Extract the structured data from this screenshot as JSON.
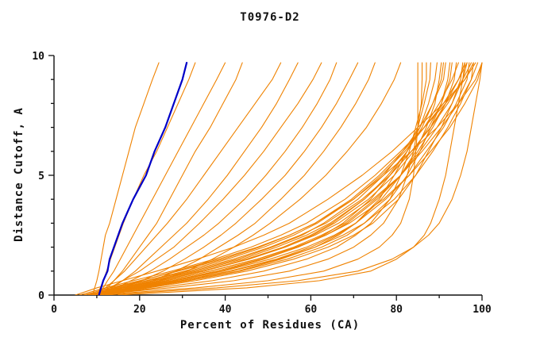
{
  "chart_data": {
    "type": "line",
    "title": "T0976-D2",
    "xlabel": "Percent of Residues (CA)",
    "ylabel": "Distance Cutoff, A",
    "xlim": [
      0,
      100
    ],
    "ylim": [
      0,
      10
    ],
    "xticks": [
      0,
      20,
      40,
      60,
      80,
      100
    ],
    "x_minor_step": 10,
    "yticks": [
      0,
      5,
      10
    ],
    "y_minor_step": 1,
    "grid": false,
    "legend_position": "none",
    "line_color": "#ef8200",
    "highlight_color": "#0000c8",
    "axis_color": "#111111",
    "y_samples": [
      0,
      0.3,
      0.6,
      1,
      1.5,
      2,
      2.5,
      3,
      4,
      5,
      6,
      7,
      8,
      9,
      9.7
    ],
    "series": [
      {
        "name": "model",
        "color": "#ef8200",
        "width": 1.1,
        "x": [
          9,
          9.5,
          10,
          10.5,
          11,
          11.5,
          12,
          13,
          14.5,
          16,
          17.5,
          19,
          21,
          23,
          24.5
        ]
      },
      {
        "name": "model",
        "color": "#ef8200",
        "width": 1.1,
        "x": [
          10,
          10.8,
          11.5,
          12.3,
          13.2,
          14.2,
          15.2,
          16.2,
          18.5,
          21,
          24,
          26.5,
          29,
          31.5,
          33
        ]
      },
      {
        "name": "model",
        "color": "#ef8200",
        "width": 1.1,
        "x": [
          10.5,
          11.5,
          12.5,
          14,
          15.5,
          17,
          18.5,
          20,
          23,
          26,
          29,
          32,
          35,
          38,
          40
        ]
      },
      {
        "name": "model",
        "color": "#ef8200",
        "width": 1.1,
        "x": [
          11,
          12.5,
          14,
          16,
          18,
          20,
          22,
          24,
          27,
          30,
          33,
          36.5,
          39.5,
          42.5,
          44
        ]
      },
      {
        "name": "model",
        "color": "#ef8200",
        "width": 1.1,
        "x": [
          10,
          12,
          14,
          16.5,
          19,
          21.5,
          24,
          26.5,
          31,
          35,
          39,
          43,
          47,
          51,
          53
        ]
      },
      {
        "name": "model",
        "color": "#ef8200",
        "width": 1.1,
        "x": [
          11,
          13.5,
          16,
          19,
          22,
          25,
          28,
          31,
          36,
          40.5,
          44.5,
          48.5,
          52,
          55,
          57
        ]
      },
      {
        "name": "model",
        "color": "#ef8200",
        "width": 1.1,
        "x": [
          10,
          13,
          16,
          20,
          24,
          28,
          31,
          34,
          39.5,
          44.5,
          49,
          53,
          57,
          60.5,
          62.5
        ]
      },
      {
        "name": "model",
        "color": "#ef8200",
        "width": 1.1,
        "x": [
          11,
          14.5,
          18,
          22.5,
          27,
          31,
          35,
          38.5,
          44.5,
          49.5,
          54,
          58,
          61.5,
          64.5,
          66
        ]
      },
      {
        "name": "model",
        "color": "#ef8200",
        "width": 1.1,
        "x": [
          12,
          16,
          20.5,
          25.5,
          30.5,
          35,
          39,
          42.5,
          48.5,
          54,
          58.5,
          62.5,
          66,
          69,
          71
        ]
      },
      {
        "name": "model",
        "color": "#ef8200",
        "width": 1.1,
        "x": [
          12.5,
          17.5,
          23,
          28.5,
          34,
          38.5,
          43,
          47,
          53,
          58.5,
          63,
          67,
          70.5,
          73.5,
          75
        ]
      },
      {
        "name": "model",
        "color": "#ef8200",
        "width": 1.1,
        "x": [
          13,
          18.5,
          24.5,
          31,
          37,
          42,
          46.5,
          50.5,
          57.5,
          63.5,
          68.5,
          73,
          76.5,
          79.5,
          81
        ]
      },
      {
        "name": "model",
        "color": "#ef8200",
        "width": 1.1,
        "x": [
          10,
          33,
          50,
          63,
          71,
          76,
          79,
          81,
          83,
          84,
          84.5,
          85,
          85,
          85,
          85
        ]
      },
      {
        "name": "model",
        "color": "#ef8200",
        "width": 1.1,
        "x": [
          9,
          27,
          42,
          55,
          64,
          70,
          74,
          77,
          80.5,
          82.5,
          84,
          85,
          85.8,
          86,
          86
        ]
      },
      {
        "name": "model",
        "color": "#ef8200",
        "width": 1.1,
        "x": [
          10,
          24,
          37,
          49,
          59,
          66,
          70.5,
          74,
          78.5,
          81,
          83,
          84.5,
          86,
          87,
          87
        ]
      },
      {
        "name": "model",
        "color": "#ef8200",
        "width": 1.1,
        "x": [
          8,
          20,
          31,
          43,
          53,
          61,
          66.5,
          70.5,
          76,
          79.5,
          82.5,
          85,
          86.5,
          87.8,
          88
        ]
      },
      {
        "name": "model",
        "color": "#ef8200",
        "width": 1.1,
        "x": [
          9,
          18,
          28,
          39,
          49,
          57,
          63,
          67.5,
          74,
          78.5,
          82.5,
          85.5,
          87.5,
          89,
          89.5
        ]
      },
      {
        "name": "model",
        "color": "#ef8200",
        "width": 1.1,
        "x": [
          10,
          19,
          29.5,
          41,
          52,
          60,
          66,
          70.5,
          76.5,
          81,
          84.5,
          87,
          89,
          90,
          90.5
        ]
      },
      {
        "name": "model",
        "color": "#ef8200",
        "width": 1.1,
        "x": [
          7,
          16,
          25,
          35,
          45,
          53.5,
          60,
          65,
          72.5,
          78,
          82.5,
          86,
          88.5,
          90.5,
          91
        ]
      },
      {
        "name": "model",
        "color": "#ef8200",
        "width": 1.1,
        "x": [
          8,
          15,
          23,
          32.5,
          43,
          51,
          58,
          63,
          71,
          77,
          81.5,
          85.5,
          88.5,
          91,
          91.5
        ]
      },
      {
        "name": "model",
        "color": "#ef8200",
        "width": 1.1,
        "x": [
          11,
          21,
          31.5,
          43.5,
          54.5,
          62.5,
          68.5,
          72.5,
          78.5,
          82.5,
          85.5,
          88,
          90.5,
          92,
          92.5
        ]
      },
      {
        "name": "model",
        "color": "#ef8200",
        "width": 1.1,
        "x": [
          9,
          16,
          25,
          35,
          45.5,
          54,
          60.5,
          65.5,
          73.5,
          79.5,
          84,
          87.5,
          90.5,
          92.5,
          93
        ]
      },
      {
        "name": "model",
        "color": "#ef8200",
        "width": 1.1,
        "x": [
          10,
          18,
          27.5,
          38,
          48.5,
          57,
          63.5,
          68.5,
          75.5,
          81,
          85,
          88.5,
          91.5,
          93.5,
          94
        ]
      },
      {
        "name": "model",
        "color": "#ef8200",
        "width": 1.1,
        "x": [
          8,
          14,
          21.5,
          30.5,
          40.5,
          49,
          56,
          61.5,
          70,
          76.5,
          82,
          86.5,
          90,
          93,
          94.5
        ]
      },
      {
        "name": "model",
        "color": "#ef8200",
        "width": 1.1,
        "x": [
          12,
          22,
          33,
          45,
          56,
          64,
          70,
          74.5,
          80.5,
          84.5,
          87.5,
          90.5,
          93,
          95,
          95.5
        ]
      },
      {
        "name": "model",
        "color": "#ef8200",
        "width": 1.1,
        "x": [
          9,
          15.5,
          23.5,
          33.5,
          44,
          52,
          59,
          64.5,
          72.5,
          78.5,
          83.5,
          88,
          91.5,
          94.5,
          96
        ]
      },
      {
        "name": "model",
        "color": "#ef8200",
        "width": 1.1,
        "x": [
          10,
          17,
          26,
          36.5,
          47.5,
          56,
          62.5,
          68,
          75,
          81,
          85.5,
          89.5,
          93,
          95.5,
          96.5
        ]
      },
      {
        "name": "model",
        "color": "#ef8200",
        "width": 1.1,
        "x": [
          7,
          13,
          20,
          29,
          39.5,
          48,
          55,
          61,
          69.5,
          76,
          81.5,
          86.5,
          91,
          94.5,
          96.5
        ]
      },
      {
        "name": "model",
        "color": "#ef8200",
        "width": 1.1,
        "x": [
          11,
          19,
          28.5,
          39.5,
          50.5,
          59,
          65.5,
          70.5,
          77.5,
          83,
          87,
          91,
          94,
          96.5,
          97
        ]
      },
      {
        "name": "model",
        "color": "#ef8200",
        "width": 1.1,
        "x": [
          8,
          14,
          22,
          31.5,
          42,
          50.5,
          57.5,
          63.5,
          72,
          78.5,
          83.5,
          88,
          92,
          95.5,
          97.5
        ]
      },
      {
        "name": "model",
        "color": "#ef8200",
        "width": 1.1,
        "x": [
          12,
          20,
          30,
          41.5,
          52.5,
          61,
          67.5,
          72.5,
          79.5,
          84.5,
          88.5,
          92,
          95,
          97.5,
          98
        ]
      },
      {
        "name": "model",
        "color": "#ef8200",
        "width": 1.1,
        "x": [
          6,
          12,
          18.5,
          27.5,
          37.5,
          46,
          53,
          59,
          68,
          75,
          81,
          86.5,
          91.5,
          96,
          98
        ]
      },
      {
        "name": "model",
        "color": "#ef8200",
        "width": 1.1,
        "x": [
          10,
          16,
          24.5,
          34.5,
          45.5,
          54,
          61,
          66.5,
          74.5,
          81,
          86,
          90.5,
          94.5,
          97.5,
          99
        ]
      },
      {
        "name": "model",
        "color": "#ef8200",
        "width": 1.1,
        "x": [
          5,
          10,
          16,
          24,
          33.5,
          42,
          49,
          55,
          64,
          72,
          79,
          85,
          91,
          96,
          98.5
        ]
      },
      {
        "name": "model",
        "color": "#ef8200",
        "width": 1.1,
        "x": [
          9,
          14,
          20.5,
          28.5,
          38.5,
          47.5,
          55,
          61,
          70,
          77,
          83.5,
          89.5,
          94.5,
          98.5,
          100
        ]
      },
      {
        "name": "model",
        "color": "#ef8200",
        "width": 1.1,
        "x": [
          11,
          18,
          26.5,
          36.5,
          47.5,
          56.5,
          63.5,
          69,
          77,
          83,
          88,
          92.5,
          96,
          99,
          100
        ]
      },
      {
        "name": "model",
        "color": "#ef8200",
        "width": 1.1,
        "x": [
          15,
          45,
          62,
          74,
          80,
          84,
          86.5,
          88,
          90,
          91.5,
          92.5,
          93.5,
          94.5,
          95.5,
          96
        ]
      },
      {
        "name": "model",
        "color": "#ef8200",
        "width": 1.1,
        "x": [
          12,
          38,
          57,
          71,
          79,
          84,
          87.5,
          90,
          93,
          95,
          96.5,
          97.5,
          98.5,
          99.5,
          100
        ]
      },
      {
        "name": "highlighted-model",
        "color": "#0000c8",
        "width": 2.2,
        "x": [
          10.5,
          11,
          11.5,
          12.5,
          13,
          14,
          15,
          16,
          18.5,
          21.5,
          23.5,
          26,
          28,
          30,
          31
        ]
      }
    ]
  }
}
